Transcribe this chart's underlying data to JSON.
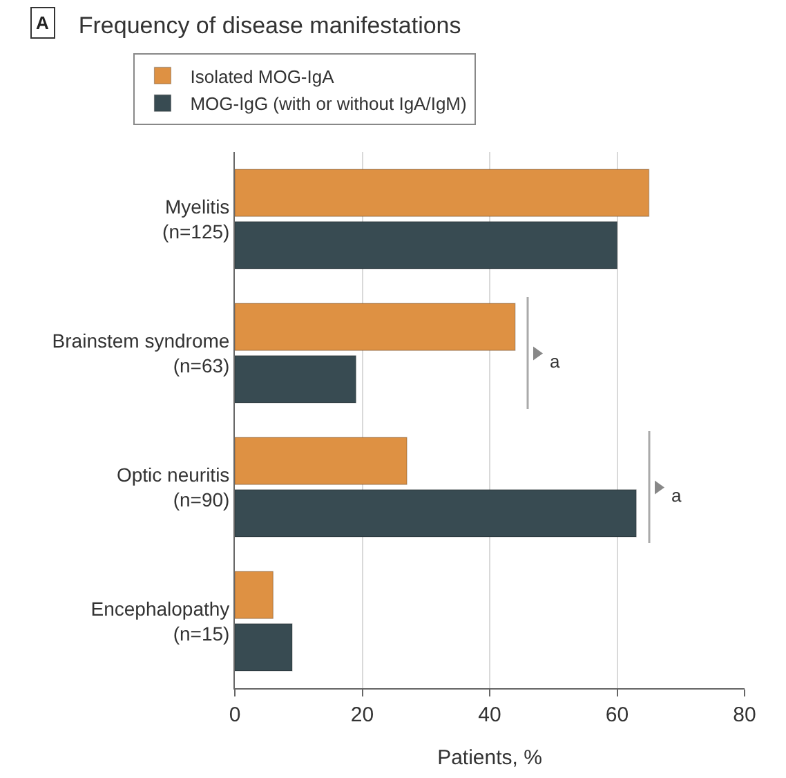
{
  "chart_data": {
    "type": "bar",
    "orientation": "horizontal",
    "title": "Frequency of disease manifestations",
    "xlabel": "Patients, %",
    "categories": [
      "Myelitis\n(n=125)",
      "Brainstem syndrome\n(n=63)",
      "Optic neuritis\n(n=90)",
      "Encephalopathy\n(n=15)"
    ],
    "series": [
      {
        "name": "Isolated MOG-IgA",
        "color": "#de9143",
        "values": [
          65,
          44,
          27,
          6
        ]
      },
      {
        "name": "MOG-IgG (with or without IgA/IgM)",
        "color": "#384b52",
        "values": [
          60,
          19,
          63,
          9
        ]
      }
    ],
    "xlim": [
      0,
      80
    ],
    "xticks": [
      0,
      20,
      40,
      60,
      80
    ],
    "grid": "x",
    "legend": "top",
    "annotations": [
      "A",
      "a",
      "a"
    ]
  }
}
